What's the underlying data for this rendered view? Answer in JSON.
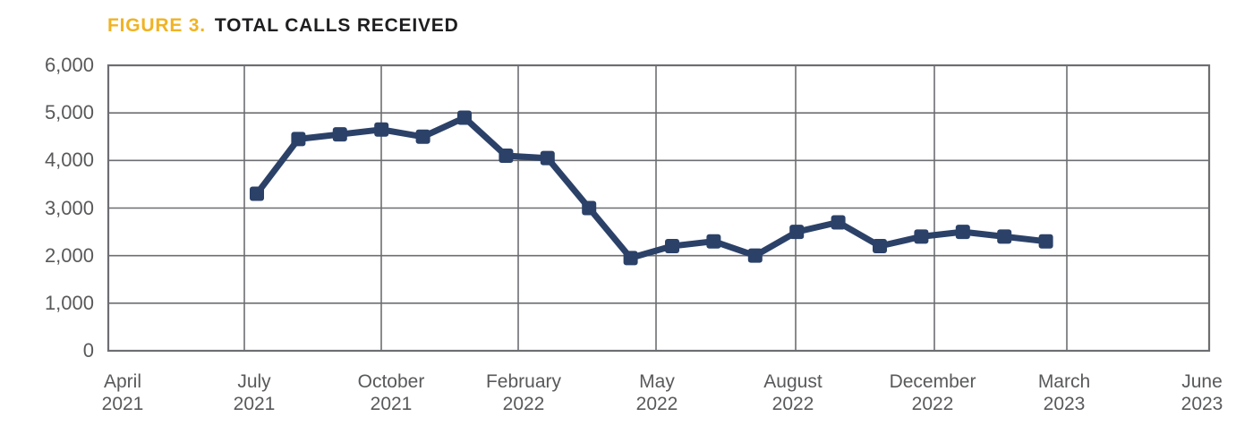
{
  "figure": {
    "label": "FIGURE 3.",
    "title": "TOTAL CALLS RECEIVED"
  },
  "colors": {
    "accent_gold": "#F0B323",
    "title_text": "#1E1E20",
    "line": "#2B4168",
    "grid": "#6D6E71",
    "axis_text": "#58595B",
    "background": "#FFFFFF"
  },
  "chart_data": {
    "type": "line",
    "title": "TOTAL CALLS RECEIVED",
    "figure_label": "FIGURE 3.",
    "x": [
      "Jul 2021",
      "Aug 2021",
      "Sep 2021",
      "Oct 2021",
      "Nov 2021",
      "Dec 2021",
      "Jan 2022",
      "Feb 2022",
      "Mar 2022",
      "Apr 2022",
      "May 2022",
      "Jun 2022",
      "Jul 2022",
      "Aug 2022",
      "Sep 2022",
      "Oct 2022",
      "Nov 2022",
      "Dec 2022",
      "Jan 2023",
      "Feb 2023"
    ],
    "values": [
      3300,
      4450,
      4550,
      4650,
      4500,
      4900,
      4100,
      4050,
      3000,
      1950,
      2200,
      2300,
      2000,
      2500,
      2700,
      2200,
      2400,
      2500,
      2400,
      2300
    ],
    "series_name": "Total calls received",
    "ylim": [
      0,
      6000
    ],
    "y_ticks": [
      0,
      1000,
      2000,
      3000,
      4000,
      5000,
      6000
    ],
    "y_tick_labels": [
      "0",
      "1,000",
      "2,000",
      "3,000",
      "4,000",
      "5,000",
      "6,000"
    ],
    "x_tick_labels": [
      {
        "line1": "April",
        "line2": "2021"
      },
      {
        "line1": "July",
        "line2": "2021"
      },
      {
        "line1": "October",
        "line2": "2021"
      },
      {
        "line1": "February",
        "line2": "2022"
      },
      {
        "line1": "May",
        "line2": "2022"
      },
      {
        "line1": "August",
        "line2": "2022"
      },
      {
        "line1": "December",
        "line2": "2022"
      },
      {
        "line1": "March",
        "line2": "2023"
      },
      {
        "line1": "June",
        "line2": "2023"
      }
    ],
    "grid": true,
    "legend_position": "none",
    "marker": "square",
    "line_color": "#2B4168"
  }
}
